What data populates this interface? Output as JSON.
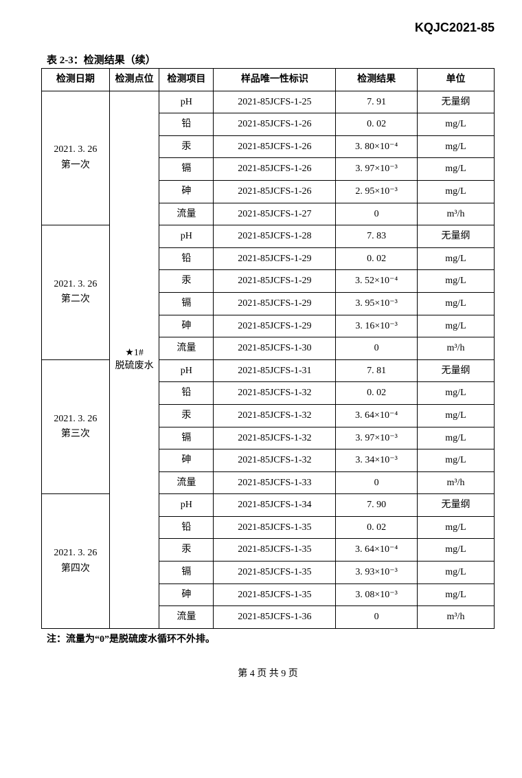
{
  "doc_id": "KQJC2021-85",
  "table_title": "表 2-3：检测结果（续）",
  "columns": [
    "检测日期",
    "检测点位",
    "检测项目",
    "样品唯一性标识",
    "检测结果",
    "单位"
  ],
  "point_label": "★1#\n脱硫废水",
  "groups": [
    {
      "date": "2021. 3. 26\n第一次",
      "rows": [
        {
          "item": "pH",
          "sample": "2021-85JCFS-1-25",
          "result": "7. 91",
          "unit": "无量纲"
        },
        {
          "item": "铅",
          "sample": "2021-85JCFS-1-26",
          "result": "0. 02",
          "unit": "mg/L"
        },
        {
          "item": "汞",
          "sample": "2021-85JCFS-1-26",
          "result": "3. 80×10⁻⁴",
          "unit": "mg/L"
        },
        {
          "item": "镉",
          "sample": "2021-85JCFS-1-26",
          "result": "3. 97×10⁻³",
          "unit": "mg/L"
        },
        {
          "item": "砷",
          "sample": "2021-85JCFS-1-26",
          "result": "2. 95×10⁻³",
          "unit": "mg/L"
        },
        {
          "item": "流量",
          "sample": "2021-85JCFS-1-27",
          "result": "0",
          "unit": "m³/h"
        }
      ]
    },
    {
      "date": "2021. 3. 26\n第二次",
      "rows": [
        {
          "item": "pH",
          "sample": "2021-85JCFS-1-28",
          "result": "7. 83",
          "unit": "无量纲"
        },
        {
          "item": "铅",
          "sample": "2021-85JCFS-1-29",
          "result": "0. 02",
          "unit": "mg/L"
        },
        {
          "item": "汞",
          "sample": "2021-85JCFS-1-29",
          "result": "3. 52×10⁻⁴",
          "unit": "mg/L"
        },
        {
          "item": "镉",
          "sample": "2021-85JCFS-1-29",
          "result": "3. 95×10⁻³",
          "unit": "mg/L"
        },
        {
          "item": "砷",
          "sample": "2021-85JCFS-1-29",
          "result": "3. 16×10⁻³",
          "unit": "mg/L"
        },
        {
          "item": "流量",
          "sample": "2021-85JCFS-1-30",
          "result": "0",
          "unit": "m³/h"
        }
      ]
    },
    {
      "date": "2021. 3. 26\n第三次",
      "rows": [
        {
          "item": "pH",
          "sample": "2021-85JCFS-1-31",
          "result": "7. 81",
          "unit": "无量纲"
        },
        {
          "item": "铅",
          "sample": "2021-85JCFS-1-32",
          "result": "0. 02",
          "unit": "mg/L"
        },
        {
          "item": "汞",
          "sample": "2021-85JCFS-1-32",
          "result": "3. 64×10⁻⁴",
          "unit": "mg/L"
        },
        {
          "item": "镉",
          "sample": "2021-85JCFS-1-32",
          "result": "3. 97×10⁻³",
          "unit": "mg/L"
        },
        {
          "item": "砷",
          "sample": "2021-85JCFS-1-32",
          "result": "3. 34×10⁻³",
          "unit": "mg/L"
        },
        {
          "item": "流量",
          "sample": "2021-85JCFS-1-33",
          "result": "0",
          "unit": "m³/h"
        }
      ]
    },
    {
      "date": "2021. 3. 26\n第四次",
      "rows": [
        {
          "item": "pH",
          "sample": "2021-85JCFS-1-34",
          "result": "7. 90",
          "unit": "无量纲"
        },
        {
          "item": "铅",
          "sample": "2021-85JCFS-1-35",
          "result": "0. 02",
          "unit": "mg/L"
        },
        {
          "item": "汞",
          "sample": "2021-85JCFS-1-35",
          "result": "3. 64×10⁻⁴",
          "unit": "mg/L"
        },
        {
          "item": "镉",
          "sample": "2021-85JCFS-1-35",
          "result": "3. 93×10⁻³",
          "unit": "mg/L"
        },
        {
          "item": "砷",
          "sample": "2021-85JCFS-1-35",
          "result": "3. 08×10⁻³",
          "unit": "mg/L"
        },
        {
          "item": "流量",
          "sample": "2021-85JCFS-1-36",
          "result": "0",
          "unit": "m³/h"
        }
      ]
    }
  ],
  "footnote": "注：流量为“0”是脱硫废水循环不外排。",
  "pager": "第 4 页 共 9 页"
}
